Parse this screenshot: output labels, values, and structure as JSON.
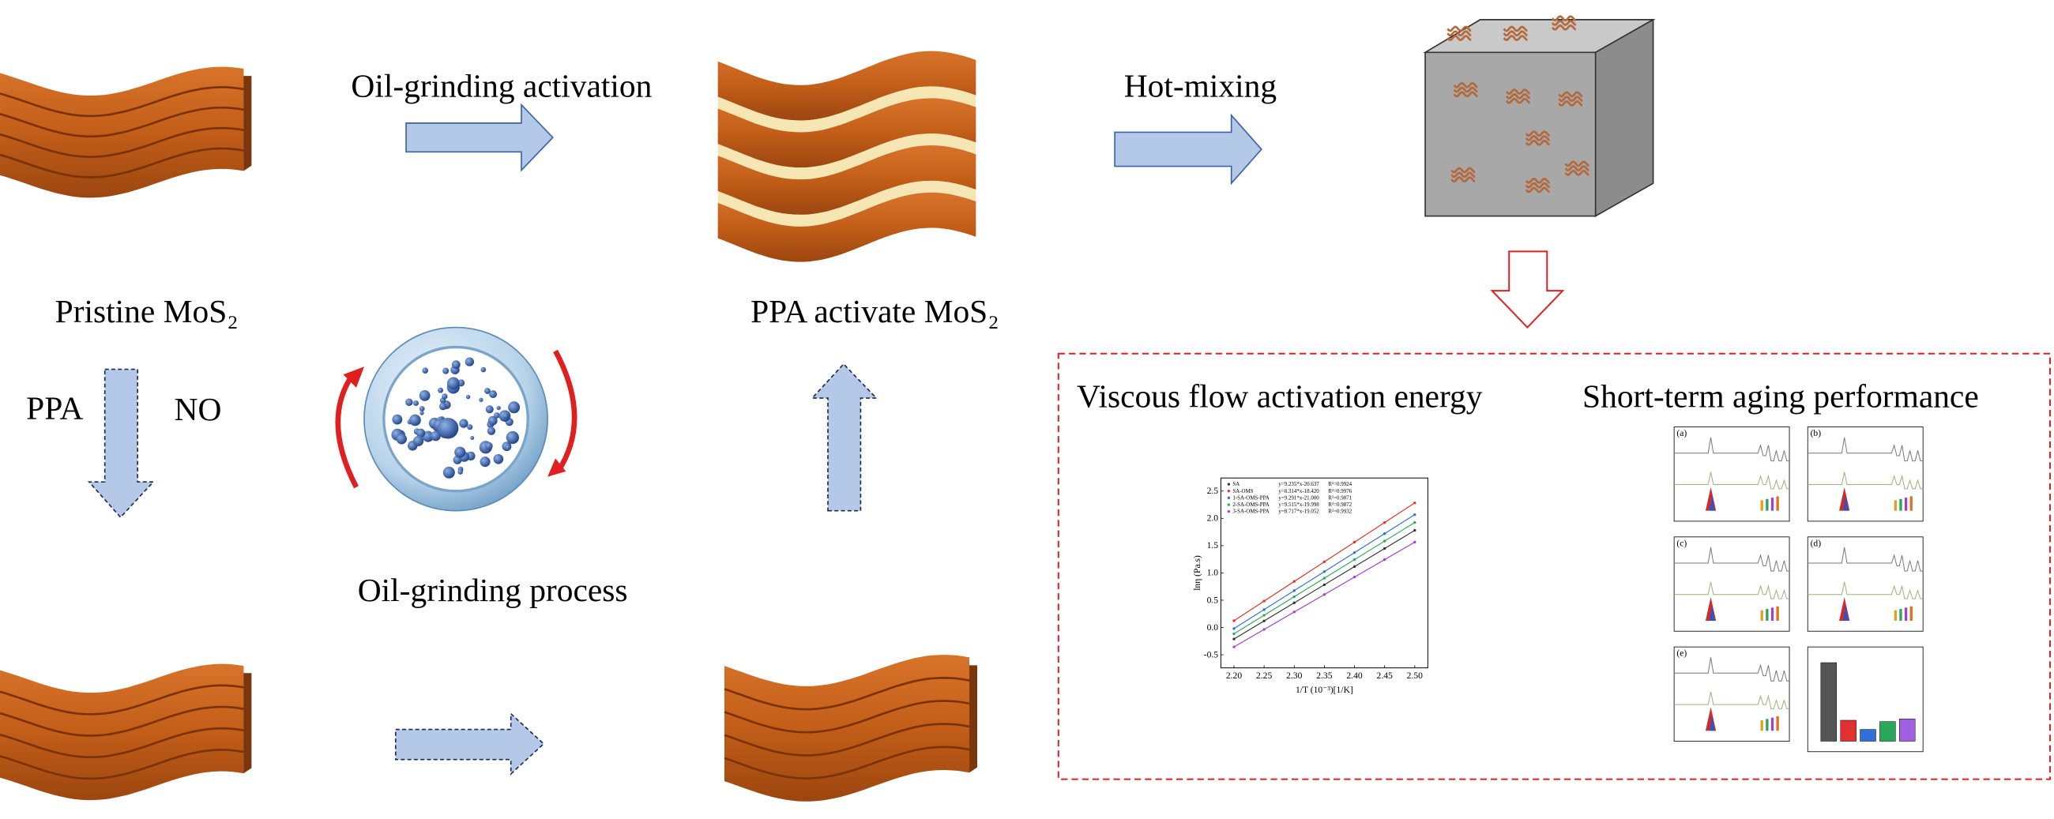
{
  "labels": {
    "oil_grinding_activation": "Oil-grinding activation",
    "hot_mixing": "Hot-mixing",
    "pristine": "Pristine MoS₂",
    "ppa_activate": "PPA activate MoS₂",
    "ppa": "PPA",
    "no": "NO",
    "oil_grinding_process": "Oil-grinding process",
    "viscous": "Viscous flow activation energy",
    "aging": "Short-term aging performance"
  },
  "inset_chart": {
    "x_label": "1/T (10⁻³)[1/K]",
    "y_label": "lnη (Pa.s)",
    "x_tick_labels": [
      "2.20",
      "2.25",
      "2.30",
      "2.35",
      "2.40",
      "2.45",
      "2.50"
    ],
    "y_tick_labels": [
      "-0.5",
      "0.0",
      "0.5",
      "1.0",
      "1.5",
      "2.0",
      "2.5"
    ],
    "legend": [
      {
        "name": "SA",
        "equation": "y=9.235*x-20.637",
        "r2": "R²=0.9924",
        "color": "#333333"
      },
      {
        "name": "SA-OMS",
        "equation": "y=8.314*x-18.420",
        "r2": "R²=0.9976",
        "color": "#e0302a"
      },
      {
        "name": "1-SA-OMS-PPA",
        "equation": "y=9.291*x-21.000",
        "r2": "R²=0.9871",
        "color": "#2f6fd6"
      },
      {
        "name": "2-SA-OMS-PPA",
        "equation": "y=9.515*x-19.998",
        "r2": "R²=0.9872",
        "color": "#2aa85a"
      },
      {
        "name": "3-SA-OMS-PPA",
        "equation": "y=8.717*x-19.052",
        "r2": "R²=0.9932",
        "color": "#a040d0"
      }
    ]
  },
  "aging_panels": [
    "(a)",
    "(b)",
    "(c)",
    "(d)",
    "(e)"
  ]
}
